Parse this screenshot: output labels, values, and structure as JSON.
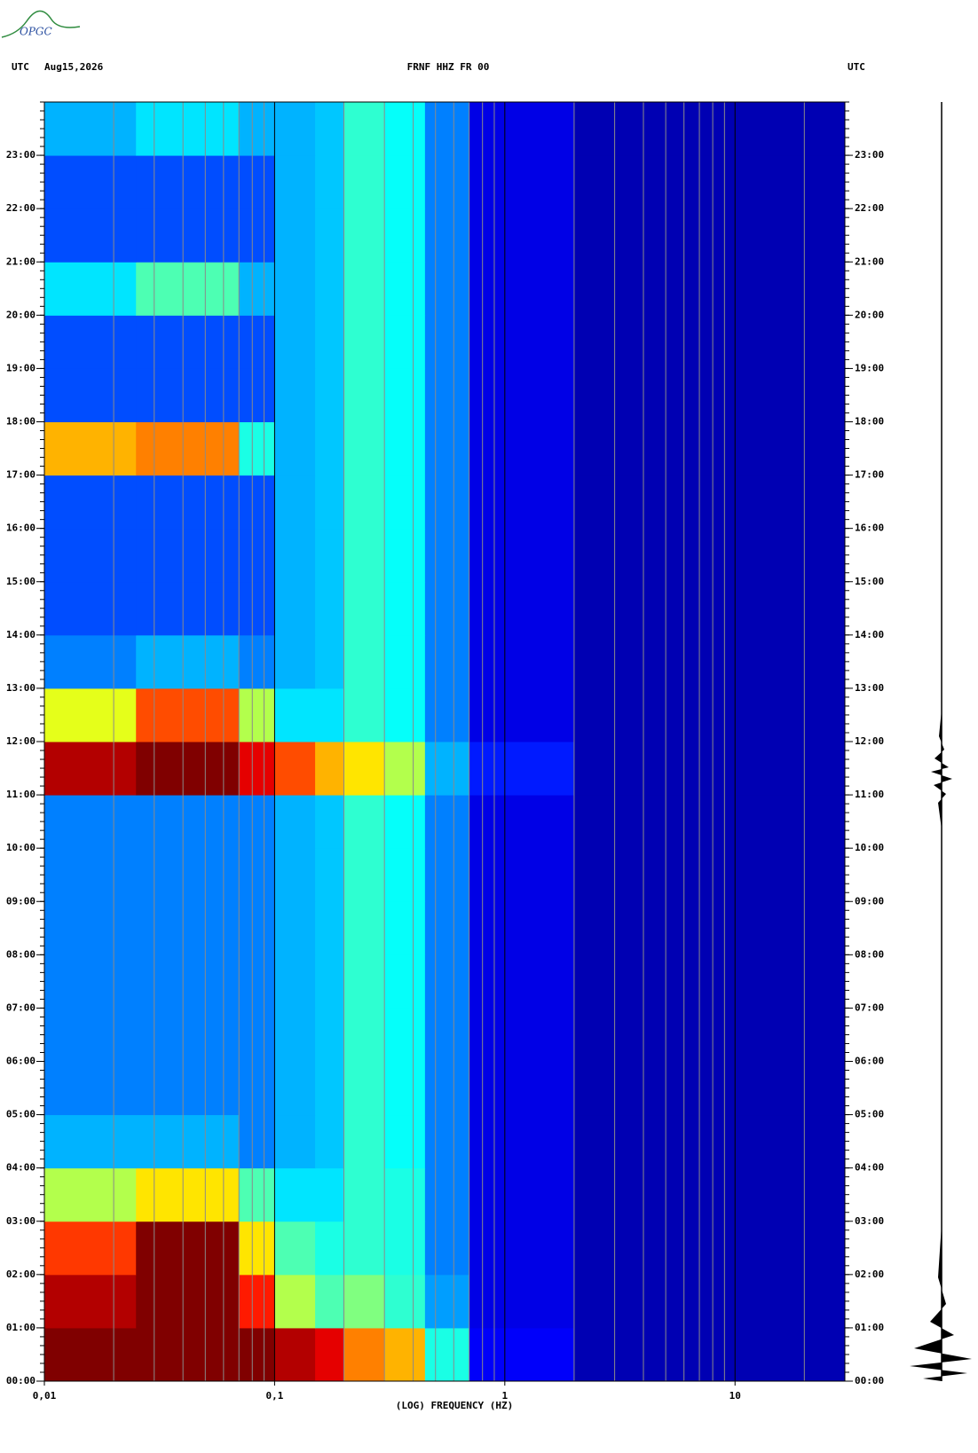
{
  "logo": "OPGC",
  "chart_data": {
    "type": "spectrogram",
    "header_left": "UTC",
    "date": "Aug15,2026",
    "station": "FRNF HHZ FR 00",
    "header_right": "UTC",
    "xlabel": "(LOG) FREQUENCY (HZ)",
    "xscale": "log",
    "xlim": [
      0.01,
      30
    ],
    "xticks": [
      {
        "value": 0.01,
        "label": "0,01"
      },
      {
        "value": 0.1,
        "label": "0,1"
      },
      1,
      10
    ],
    "xminor_grid": true,
    "ylim": [
      0,
      24
    ],
    "yticks": [
      {
        "value": 0,
        "label": "00:00"
      },
      {
        "value": 1,
        "label": "01:00"
      },
      {
        "value": 2,
        "label": "02:00"
      },
      {
        "value": 3,
        "label": "03:00"
      },
      {
        "value": 4,
        "label": "04:00"
      },
      {
        "value": 5,
        "label": "05:00"
      },
      {
        "value": 6,
        "label": "06:00"
      },
      {
        "value": 7,
        "label": "07:00"
      },
      {
        "value": 8,
        "label": "08:00"
      },
      {
        "value": 9,
        "label": "09:00"
      },
      {
        "value": 10,
        "label": "10:00"
      },
      {
        "value": 11,
        "label": "11:00"
      },
      {
        "value": 12,
        "label": "12:00"
      },
      {
        "value": 13,
        "label": "13:00"
      },
      {
        "value": 14,
        "label": "14:00"
      },
      {
        "value": 15,
        "label": "15:00"
      },
      {
        "value": 16,
        "label": "16:00"
      },
      {
        "value": 17,
        "label": "17:00"
      },
      {
        "value": 18,
        "label": "18:00"
      },
      {
        "value": 19,
        "label": "19:00"
      },
      {
        "value": 20,
        "label": "20:00"
      },
      {
        "value": 21,
        "label": "21:00"
      },
      {
        "value": 22,
        "label": "22:00"
      },
      {
        "value": 23,
        "label": "23:00"
      }
    ],
    "yminor_per_tick": 6,
    "colormap": "jet",
    "heatmap": {
      "x_edges": [
        0.01,
        0.025,
        0.07,
        0.1,
        0.15,
        0.2,
        0.3,
        0.45,
        0.7,
        2,
        30
      ],
      "y_edges": [
        0,
        1,
        2,
        3,
        4,
        5,
        6,
        7,
        8,
        9,
        10,
        11,
        12,
        13,
        14,
        15,
        16,
        17,
        18,
        19,
        20,
        21,
        22,
        23,
        24
      ],
      "values": [
        [
          100,
          100,
          100,
          95,
          90,
          75,
          70,
          40,
          12,
          5
        ],
        [
          95,
          100,
          85,
          55,
          45,
          50,
          42,
          28,
          10,
          5
        ],
        [
          82,
          100,
          65,
          45,
          40,
          42,
          40,
          25,
          10,
          5
        ],
        [
          55,
          65,
          45,
          35,
          35,
          42,
          40,
          25,
          10,
          5
        ],
        [
          30,
          30,
          25,
          30,
          32,
          42,
          38,
          25,
          10,
          5
        ],
        [
          25,
          25,
          25,
          30,
          32,
          42,
          38,
          25,
          10,
          5
        ],
        [
          25,
          25,
          25,
          30,
          32,
          42,
          38,
          25,
          10,
          5
        ],
        [
          25,
          25,
          25,
          30,
          32,
          42,
          38,
          25,
          10,
          5
        ],
        [
          25,
          25,
          25,
          30,
          32,
          42,
          38,
          25,
          10,
          5
        ],
        [
          25,
          25,
          25,
          30,
          32,
          42,
          38,
          25,
          10,
          5
        ],
        [
          25,
          25,
          25,
          30,
          32,
          42,
          38,
          25,
          10,
          5
        ],
        [
          95,
          100,
          90,
          80,
          70,
          65,
          55,
          30,
          15,
          5
        ],
        [
          60,
          80,
          55,
          35,
          35,
          42,
          38,
          25,
          10,
          5
        ],
        [
          25,
          30,
          25,
          30,
          32,
          42,
          38,
          25,
          10,
          5
        ],
        [
          20,
          20,
          20,
          30,
          32,
          42,
          38,
          25,
          10,
          5
        ],
        [
          20,
          20,
          20,
          30,
          32,
          42,
          38,
          25,
          10,
          5
        ],
        [
          20,
          20,
          20,
          30,
          32,
          42,
          38,
          25,
          10,
          5
        ],
        [
          70,
          75,
          40,
          30,
          32,
          42,
          38,
          25,
          10,
          5
        ],
        [
          20,
          20,
          20,
          30,
          32,
          42,
          38,
          25,
          10,
          5
        ],
        [
          20,
          20,
          20,
          30,
          32,
          42,
          38,
          25,
          10,
          5
        ],
        [
          35,
          45,
          30,
          30,
          32,
          42,
          38,
          25,
          10,
          5
        ],
        [
          20,
          20,
          20,
          30,
          32,
          42,
          38,
          25,
          10,
          5
        ],
        [
          20,
          20,
          20,
          30,
          32,
          42,
          38,
          25,
          10,
          5
        ],
        [
          30,
          35,
          30,
          30,
          32,
          42,
          38,
          25,
          10,
          5
        ]
      ]
    }
  }
}
